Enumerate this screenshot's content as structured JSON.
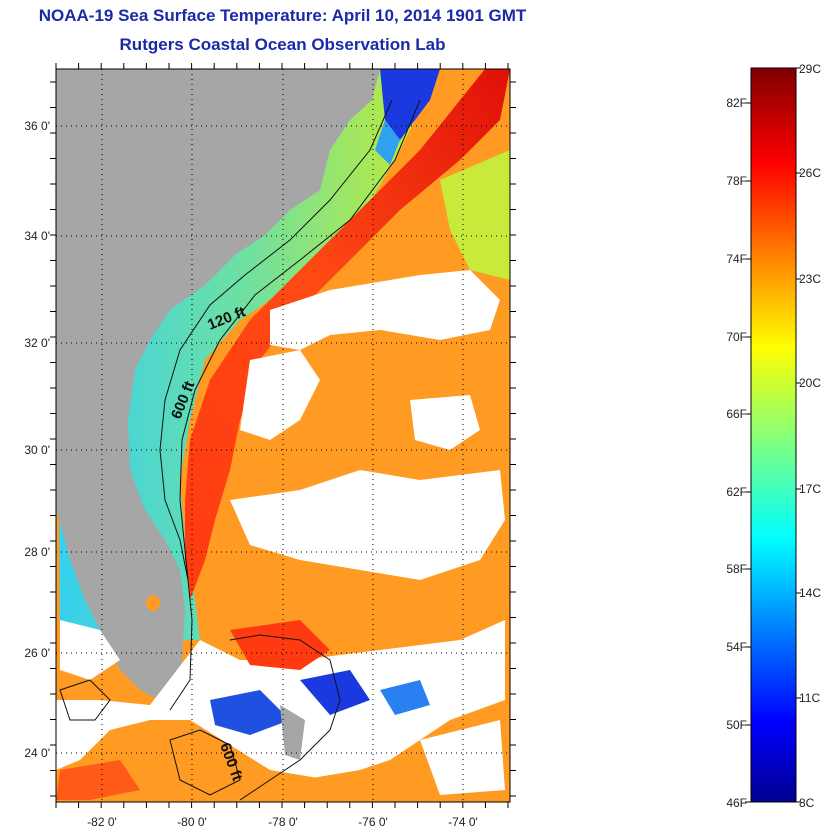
{
  "title": "NOAA-19 Sea Surface Temperature:  April 10, 2014 1901 GMT",
  "subtitle": "Rutgers Coastal Ocean Observation Lab",
  "map": {
    "lon_labels": [
      "-82 0'",
      "-80 0'",
      "-78 0'",
      "-76 0'",
      "-74 0'"
    ],
    "lat_labels": [
      "36 0'",
      "34 0'",
      "32 0'",
      "30 0'",
      "28 0'",
      "26 0'",
      "24 0'"
    ],
    "contour_labels": [
      "120 ft",
      "600 ft",
      "600 ft"
    ],
    "colors": {
      "land": "#a6a6a6",
      "cloud": "#ffffff",
      "frame": "#000000"
    }
  },
  "colorbar": {
    "fahrenheit_labels": [
      "82F",
      "78F",
      "74F",
      "70F",
      "66F",
      "62F",
      "58F",
      "54F",
      "50F",
      "46F"
    ],
    "celsius_labels": [
      "29C",
      "26C",
      "23C",
      "20C",
      "17C",
      "14C",
      "11C",
      "8C"
    ]
  }
}
